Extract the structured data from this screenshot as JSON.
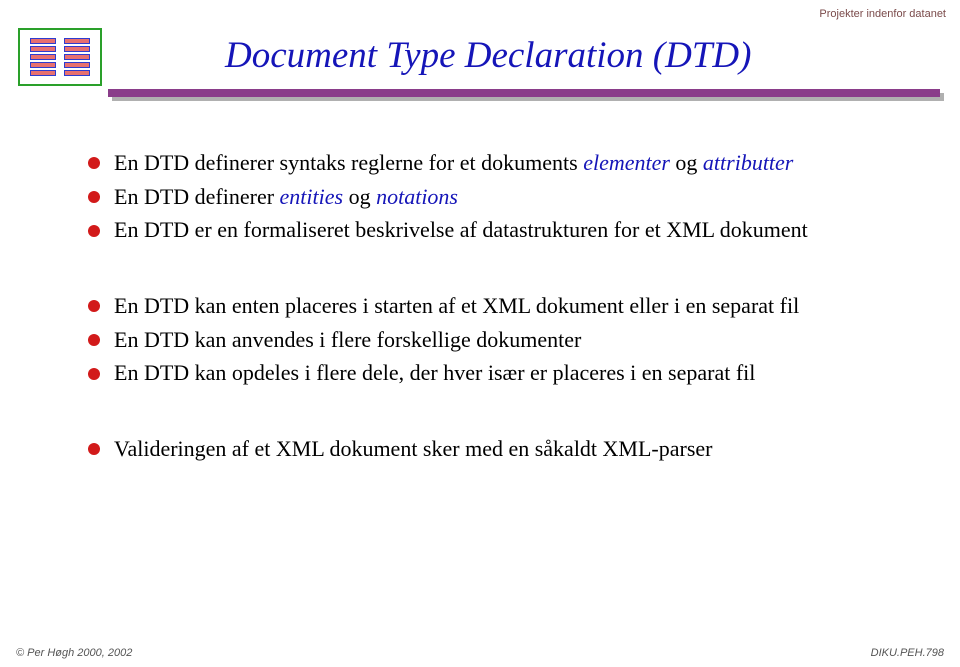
{
  "corner_tag": "Projekter indenfor datanet",
  "title": "Document Type Declaration (DTD)",
  "colors": {
    "title": "#1515b8",
    "rule": "#8a3d8a",
    "rule_shadow": "#b0b0b0",
    "bullet": "#d21a1a",
    "logo_border": "#2aa02a",
    "layer_border": "#2e3cd0",
    "layer_fill": "#e77070",
    "corner_text": "#7a4a4a",
    "body_text": "#000000",
    "emphasis": "#1515b8",
    "background": "#ffffff"
  },
  "typography": {
    "title_size_pt": 28,
    "body_size_pt": 17,
    "corner_size_pt": 8,
    "footer_size_pt": 8,
    "title_font": "Times New Roman, italic",
    "body_font": "Times New Roman"
  },
  "bullets_g1": [
    {
      "pre": "En DTD definerer syntaks reglerne for et dokuments ",
      "em1": "elementer",
      "mid": " og ",
      "em2": "attributter",
      "post": ""
    },
    {
      "pre": "En DTD definerer ",
      "em1": "entities",
      "mid": " og ",
      "em2": "notations",
      "post": ""
    },
    {
      "pre": "En DTD er en formaliseret beskrivelse af datastrukturen for et XML dokument",
      "em1": "",
      "mid": "",
      "em2": "",
      "post": ""
    }
  ],
  "bullets_g2": [
    {
      "text": "En DTD kan enten placeres i starten af et XML dokument eller i en separat fil"
    },
    {
      "text": "En DTD kan anvendes i flere forskellige dokumenter"
    },
    {
      "text": "En DTD kan opdeles i flere dele, der hver især er placeres i en separat fil"
    }
  ],
  "bullets_g3": [
    {
      "text": "Valideringen af et XML dokument sker med en såkaldt XML-parser"
    }
  ],
  "footer": {
    "left": "© Per Høgh  2000, 2002",
    "right": "DIKU.PEH.798"
  }
}
